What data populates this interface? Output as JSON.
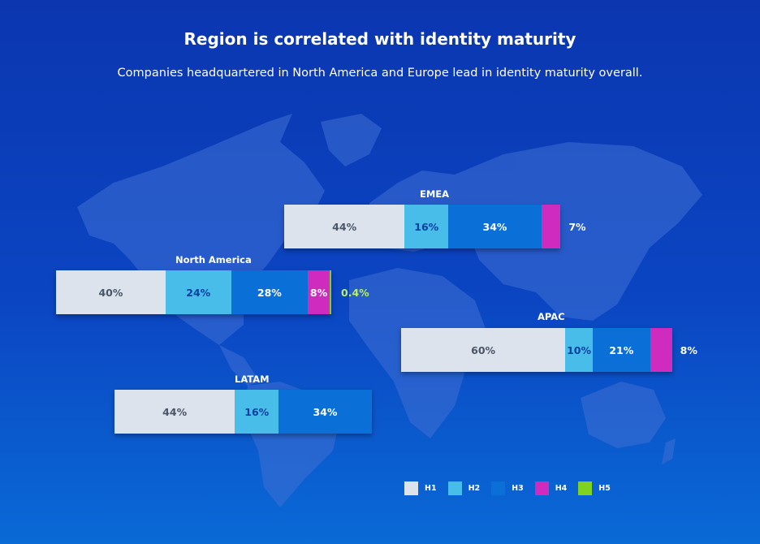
{
  "title": "Region is correlated with identity maturity",
  "subtitle": "Companies headquartered in North America and Europe lead in identity maturity overall.",
  "legend": [
    {
      "label": "H1",
      "color": "#dde3ec"
    },
    {
      "label": "H2",
      "color": "#49bdea"
    },
    {
      "label": "H3",
      "color": "#0b6fd8"
    },
    {
      "label": "H4",
      "color": "#cf2cbf"
    },
    {
      "label": "H5",
      "color": "#7fd320"
    }
  ],
  "chart_data": {
    "type": "bar",
    "orientation": "horizontal",
    "stacked": true,
    "unit": "%",
    "series_names": [
      "H1",
      "H2",
      "H3",
      "H4",
      "H5"
    ],
    "regions": [
      {
        "name": "EMEA",
        "values": [
          44,
          16,
          34,
          7,
          null
        ],
        "labels": [
          "44%",
          "16%",
          "34%",
          "7%",
          ""
        ]
      },
      {
        "name": "North America",
        "values": [
          40,
          24,
          28,
          8,
          0.4
        ],
        "labels": [
          "40%",
          "24%",
          "28%",
          "8%",
          "0.4%"
        ]
      },
      {
        "name": "APAC",
        "values": [
          60,
          10,
          21,
          8,
          null
        ],
        "labels": [
          "60%",
          "10%",
          "21%",
          "8%",
          ""
        ]
      },
      {
        "name": "LATAM",
        "values": [
          44,
          16,
          34,
          null,
          null
        ],
        "labels": [
          "44%",
          "16%",
          "34%",
          "",
          ""
        ]
      }
    ]
  }
}
